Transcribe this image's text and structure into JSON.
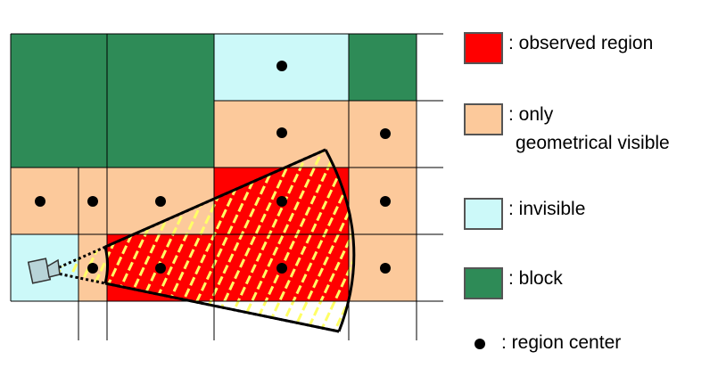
{
  "colors": {
    "observed": "#ff0000",
    "geometrical_visible": "#fcc99b",
    "invisible": "#ccf9f9",
    "block": "#2e8b57",
    "dash": "#ffff66",
    "grid": "#000000",
    "camera": "#b8d4d8"
  },
  "legend": {
    "observed": ": observed region",
    "geometrical_visible_line1": ": only",
    "geometrical_visible_line2": "geometrical visible",
    "invisible": ": invisible",
    "block": ": block",
    "region_center": ": region center"
  },
  "icons": {
    "camera": "camera-icon",
    "region_center": "dot"
  }
}
